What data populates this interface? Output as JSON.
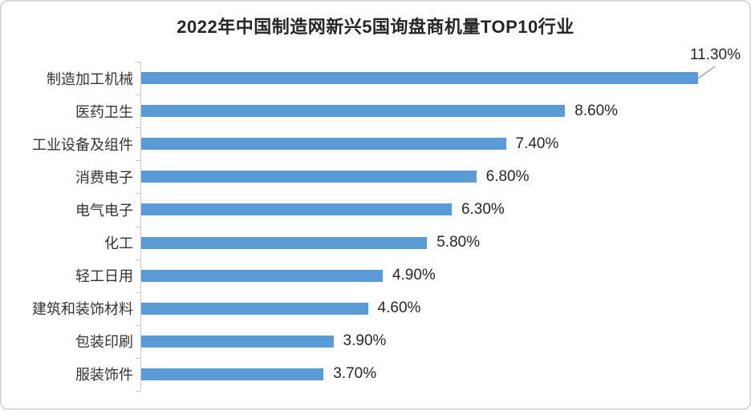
{
  "chart_data": {
    "type": "bar",
    "orientation": "horizontal",
    "title": "2022年中国制造网新兴5国询盘商机量TOP10行业",
    "categories": [
      "制造加工机械",
      "医药卫生",
      "工业设备及组件",
      "消费电子",
      "电气电子",
      "化工",
      "轻工日用",
      "建筑和装饰材料",
      "包装印刷",
      "服装饰件"
    ],
    "values": [
      11.3,
      8.6,
      7.4,
      6.8,
      6.3,
      5.8,
      4.9,
      4.6,
      3.9,
      3.7
    ],
    "value_labels": [
      "11.30%",
      "8.60%",
      "7.40%",
      "6.80%",
      "6.30%",
      "5.80%",
      "4.90%",
      "4.60%",
      "3.90%",
      "3.70%"
    ],
    "xlim": [
      0,
      12
    ],
    "grid": false,
    "legend": false,
    "value_label_position": "outside-end",
    "first_value_label_callout": true,
    "colors": {
      "bar": "#5B9BD5",
      "axis": "#C6C6C6",
      "leader_line": "#A6A6A6",
      "title_text": "#262626",
      "category_text": "#333333",
      "value_text": "#262626",
      "frame_border": "#D9D9D9",
      "background": "#FFFFFF"
    }
  }
}
